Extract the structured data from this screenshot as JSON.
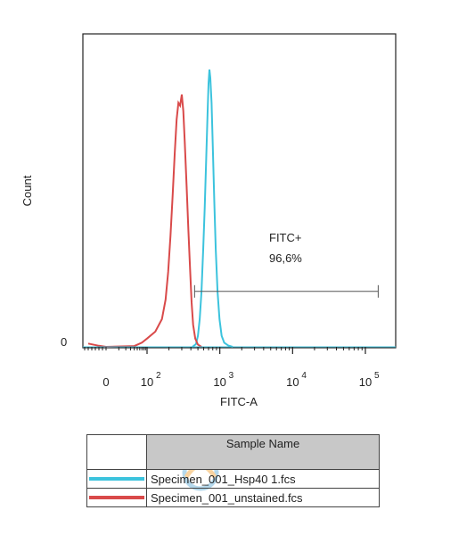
{
  "chart_data": {
    "type": "line",
    "xscale": "biexponential",
    "xlabel": "FITC-A",
    "ylabel": "Count",
    "y_tick_label": "0",
    "x_ticks": [
      {
        "value": 0,
        "base": "0",
        "exp": ""
      },
      {
        "value": 100,
        "base": "10",
        "exp": "2"
      },
      {
        "value": 1000,
        "base": "10",
        "exp": "3"
      },
      {
        "value": 10000,
        "base": "10",
        "exp": "4"
      },
      {
        "value": 100000,
        "base": "10",
        "exp": "5"
      }
    ],
    "ylim": [
      0,
      100
    ],
    "series": [
      {
        "name": "Specimen_001_Hsp40 1.fcs",
        "color": "#3cc3dd",
        "points": [
          [
            420,
            0
          ],
          [
            470,
            1
          ],
          [
            500,
            4
          ],
          [
            530,
            10
          ],
          [
            560,
            20
          ],
          [
            590,
            35
          ],
          [
            620,
            50
          ],
          [
            650,
            68
          ],
          [
            680,
            85
          ],
          [
            700,
            95
          ],
          [
            720,
            100
          ],
          [
            740,
            97
          ],
          [
            770,
            88
          ],
          [
            800,
            72
          ],
          [
            840,
            52
          ],
          [
            880,
            35
          ],
          [
            930,
            20
          ],
          [
            990,
            10
          ],
          [
            1060,
            4
          ],
          [
            1150,
            1.5
          ],
          [
            1300,
            0.5
          ],
          [
            1500,
            0
          ]
        ]
      },
      {
        "name": "Specimen_001_unstained.fcs",
        "color": "#d94a4a",
        "points": [
          [
            -50,
            1.2
          ],
          [
            -20,
            0.4
          ],
          [
            0,
            0
          ],
          [
            40,
            0.3
          ],
          [
            70,
            1.5
          ],
          [
            100,
            3
          ],
          [
            130,
            5.5
          ],
          [
            160,
            10
          ],
          [
            180,
            17
          ],
          [
            195,
            27
          ],
          [
            210,
            40
          ],
          [
            225,
            55
          ],
          [
            240,
            70
          ],
          [
            255,
            82
          ],
          [
            270,
            88
          ],
          [
            285,
            87
          ],
          [
            300,
            91
          ],
          [
            315,
            85
          ],
          [
            330,
            74
          ],
          [
            350,
            58
          ],
          [
            370,
            42
          ],
          [
            390,
            28
          ],
          [
            410,
            16
          ],
          [
            430,
            8
          ],
          [
            460,
            3
          ],
          [
            500,
            0.8
          ],
          [
            560,
            0
          ]
        ]
      }
    ],
    "gate": {
      "label": "FITC+",
      "percent": "96,6%",
      "from": 450,
      "to": 150000,
      "level": 20
    }
  },
  "legend": {
    "header": "Sample Name",
    "rows": [
      {
        "name": "Specimen_001_Hsp40 1.fcs",
        "color": "#3cc3dd"
      },
      {
        "name": "Specimen_001_unstained.fcs",
        "color": "#d94a4a"
      }
    ]
  }
}
